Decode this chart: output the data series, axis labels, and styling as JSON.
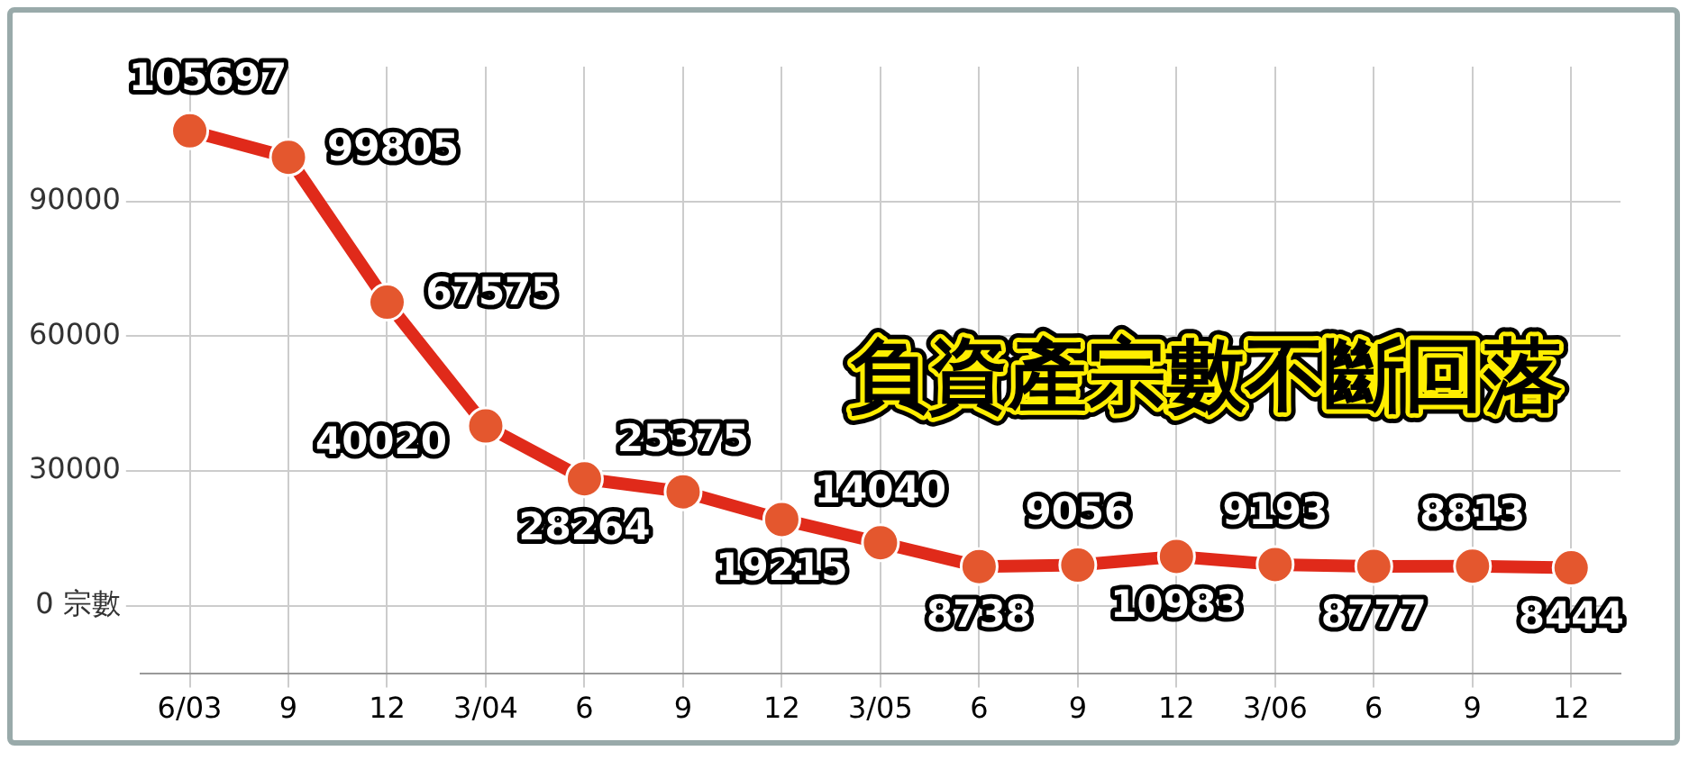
{
  "chart_data": {
    "type": "line",
    "title": "負資產宗數不斷回落",
    "categories": [
      "6/03",
      "9",
      "12",
      "3/04",
      "6",
      "9",
      "12",
      "3/05",
      "6",
      "9",
      "12",
      "3/06",
      "6",
      "9",
      "12"
    ],
    "series": [
      {
        "color": "#e02a1a",
        "values": [
          105697,
          99805,
          67575,
          40020,
          28264,
          25375,
          19215,
          14040,
          8738,
          9056,
          10983,
          9193,
          8777,
          8813,
          8444
        ]
      }
    ],
    "ylim": [
      -15000,
      120000
    ],
    "yticks": [
      {
        "value": 0,
        "label": "0 宗數"
      },
      30000,
      60000,
      90000
    ],
    "grid": true,
    "marker": "circle",
    "data_labels": true,
    "legend": false
  }
}
